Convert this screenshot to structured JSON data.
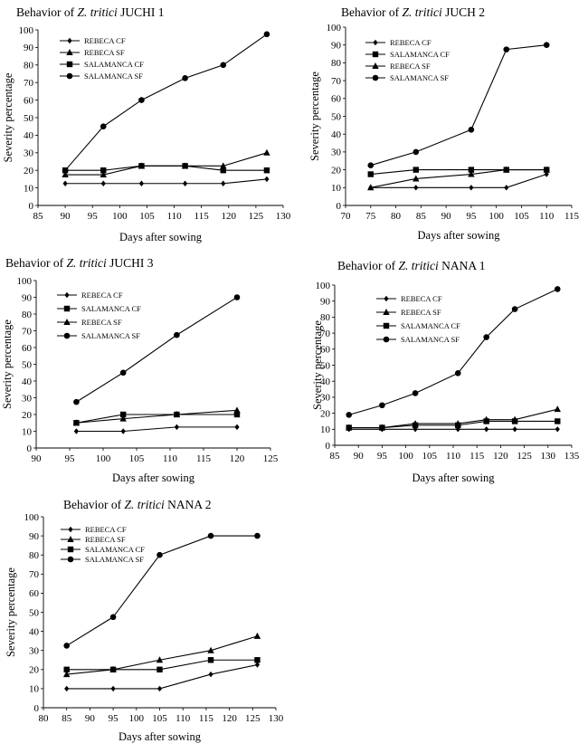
{
  "chart_data": [
    {
      "type": "line",
      "title": {
        "prefix": "Behavior of ",
        "italic": "Z. tritici",
        "suffix": " JUCHI 1"
      },
      "xlabel": "Days after sowing",
      "ylabel": "Severity percentage",
      "xlim": [
        85,
        130
      ],
      "xstep": 5,
      "ylim": [
        0,
        100
      ],
      "ystep": 10,
      "series": [
        {
          "name": "REBECA CF",
          "marker": "diamond",
          "x": [
            90,
            97,
            104,
            112,
            119,
            127
          ],
          "values": [
            12.5,
            12.5,
            12.5,
            12.5,
            12.5,
            15
          ]
        },
        {
          "name": "REBECA SF",
          "marker": "triangle",
          "x": [
            90,
            97,
            104,
            112,
            119,
            127
          ],
          "values": [
            17.5,
            17.5,
            22.5,
            22.5,
            22.5,
            30
          ]
        },
        {
          "name": "SALAMANCA CF",
          "marker": "square",
          "x": [
            90,
            97,
            104,
            112,
            119,
            127
          ],
          "values": [
            20,
            20,
            22.5,
            22.5,
            20,
            20
          ]
        },
        {
          "name": "SALAMANCA SF",
          "marker": "circle",
          "x": [
            90,
            97,
            104,
            112,
            119,
            127
          ],
          "values": [
            20,
            45,
            60,
            72.5,
            80,
            97.5
          ]
        }
      ]
    },
    {
      "type": "line",
      "title": {
        "prefix": "Behavior of ",
        "italic": "Z. tritici",
        "suffix": " JUCH 2"
      },
      "xlabel": "Days after sowing",
      "ylabel": "Severity percentage",
      "xlim": [
        70,
        115
      ],
      "xstep": 5,
      "ylim": [
        0,
        100
      ],
      "ystep": 10,
      "series": [
        {
          "name": "REBECA CF",
          "marker": "diamond",
          "x": [
            75,
            84,
            95,
            102,
            110
          ],
          "values": [
            10,
            10,
            10,
            10,
            17.5
          ]
        },
        {
          "name": "SALAMANCA CF",
          "marker": "square",
          "x": [
            75,
            84,
            95,
            102,
            110
          ],
          "values": [
            17.5,
            20,
            20,
            20,
            20
          ]
        },
        {
          "name": "REBECA SF",
          "marker": "triangle",
          "x": [
            75,
            84,
            95,
            102,
            110
          ],
          "values": [
            10,
            15,
            17.5,
            20,
            20
          ]
        },
        {
          "name": "SALAMANCA SF",
          "marker": "circle",
          "x": [
            75,
            84,
            95,
            102,
            110
          ],
          "values": [
            22.5,
            30,
            42.5,
            87.5,
            90
          ]
        }
      ]
    },
    {
      "type": "line",
      "title": {
        "prefix": "Behavior of ",
        "italic": "Z. tritici",
        "suffix": " JUCHI 3"
      },
      "xlabel": "Days after sowing",
      "ylabel": "Severity percentage",
      "xlim": [
        90,
        125
      ],
      "xstep": 5,
      "ylim": [
        0,
        100
      ],
      "ystep": 10,
      "series": [
        {
          "name": "REBECA CF",
          "marker": "diamond",
          "x": [
            96,
            103,
            111,
            120
          ],
          "values": [
            10,
            10,
            12.5,
            12.5
          ]
        },
        {
          "name": "SALAMANCA CF",
          "marker": "square",
          "x": [
            96,
            103,
            111,
            120
          ],
          "values": [
            15,
            20,
            20,
            20
          ]
        },
        {
          "name": "REBECA SF",
          "marker": "triangle",
          "x": [
            96,
            103,
            111,
            120
          ],
          "values": [
            15,
            17.5,
            20,
            22.5
          ]
        },
        {
          "name": "SALAMANCA SF",
          "marker": "circle",
          "x": [
            96,
            103,
            111,
            120
          ],
          "values": [
            27.5,
            45,
            67.5,
            90
          ]
        }
      ]
    },
    {
      "type": "line",
      "title": {
        "prefix": "Behavior of ",
        "italic": "Z. tritici",
        "suffix": " NANA 1"
      },
      "xlabel": "Days after sowing",
      "ylabel": "Severity percentage",
      "xlim": [
        85,
        135
      ],
      "xstep": 5,
      "ylim": [
        0,
        100
      ],
      "ystep": 10,
      "series": [
        {
          "name": "REBECA CF",
          "marker": "diamond",
          "x": [
            88,
            95,
            102,
            111,
            117,
            123,
            132
          ],
          "values": [
            10,
            10,
            10,
            10,
            10,
            10,
            10
          ]
        },
        {
          "name": "REBECA SF",
          "marker": "triangle",
          "x": [
            88,
            95,
            102,
            111,
            117,
            123,
            132
          ],
          "values": [
            11,
            11,
            13.5,
            13.5,
            16,
            16,
            22.5
          ]
        },
        {
          "name": "SALAMANCA CF",
          "marker": "square",
          "x": [
            88,
            95,
            102,
            111,
            117,
            123,
            132
          ],
          "values": [
            11,
            11,
            12.5,
            12.5,
            15,
            15,
            15
          ]
        },
        {
          "name": "SALAMANCA SF",
          "marker": "circle",
          "x": [
            88,
            95,
            102,
            111,
            117,
            123,
            132
          ],
          "values": [
            19,
            25,
            32.5,
            45,
            67.5,
            85,
            97.5
          ]
        }
      ]
    },
    {
      "type": "line",
      "title": {
        "prefix": "Behavior of ",
        "italic": "Z. tritici",
        "suffix": " NANA 2"
      },
      "xlabel": "Days after sowing",
      "ylabel": "Severity percentage",
      "xlim": [
        80,
        130
      ],
      "xstep": 5,
      "ylim": [
        0,
        100
      ],
      "ystep": 10,
      "series": [
        {
          "name": "REBECA CF",
          "marker": "diamond",
          "x": [
            85,
            95,
            105,
            116,
            126
          ],
          "values": [
            10,
            10,
            10,
            17.5,
            22.5
          ]
        },
        {
          "name": "REBECA SF",
          "marker": "triangle",
          "x": [
            85,
            95,
            105,
            116,
            126
          ],
          "values": [
            17.5,
            20,
            25,
            30,
            37.5
          ]
        },
        {
          "name": "SALAMANCA CF",
          "marker": "square",
          "x": [
            85,
            95,
            105,
            116,
            126
          ],
          "values": [
            20,
            20,
            20,
            25,
            25
          ]
        },
        {
          "name": "SALAMANCA SF",
          "marker": "circle",
          "x": [
            85,
            95,
            105,
            116,
            126
          ],
          "values": [
            32.5,
            47.5,
            80,
            90,
            90
          ]
        }
      ]
    }
  ]
}
